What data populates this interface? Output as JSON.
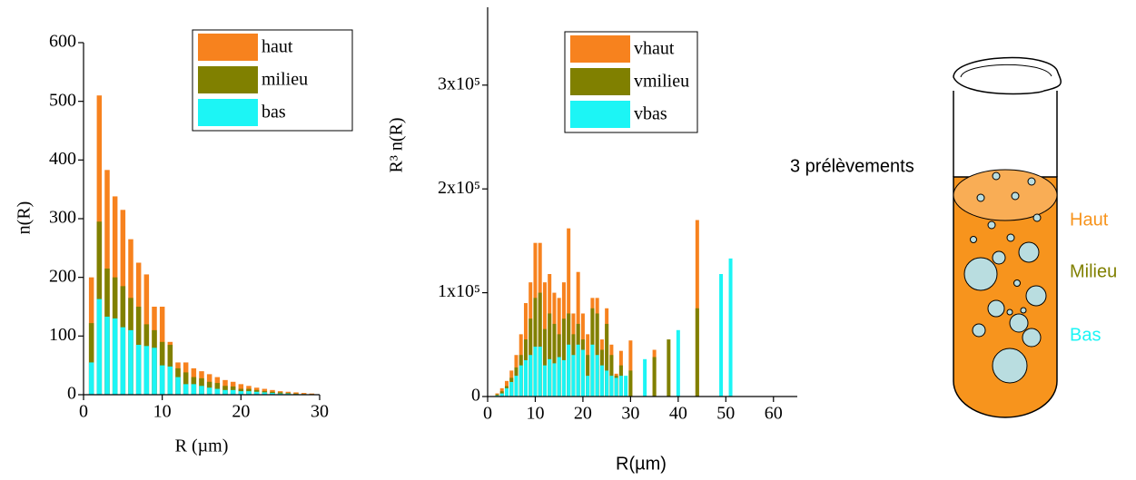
{
  "chart_data": [
    {
      "type": "bar",
      "xlabel": "R (µm)",
      "ylabel": "n(R)",
      "x": [
        1,
        2,
        3,
        4,
        5,
        6,
        7,
        8,
        9,
        10,
        11,
        12,
        13,
        14,
        15,
        16,
        17,
        18,
        19,
        20,
        21,
        22,
        23,
        24,
        25,
        26,
        27,
        28,
        29
      ],
      "series": [
        {
          "name": "haut",
          "color": "#f7821e",
          "values": [
            200,
            510,
            383,
            338,
            315,
            265,
            225,
            205,
            150,
            150,
            90,
            55,
            55,
            45,
            40,
            35,
            30,
            25,
            22,
            18,
            15,
            12,
            10,
            8,
            6,
            5,
            4,
            3,
            2
          ]
        },
        {
          "name": "milieu",
          "color": "#808000",
          "values": [
            122,
            295,
            215,
            200,
            185,
            165,
            150,
            120,
            110,
            90,
            85,
            45,
            38,
            30,
            28,
            22,
            20,
            15,
            14,
            10,
            10,
            8,
            6,
            5,
            4,
            3,
            2,
            1,
            1
          ]
        },
        {
          "name": "bas",
          "color": "#1cf5f5",
          "values": [
            55,
            163,
            133,
            130,
            115,
            110,
            85,
            83,
            80,
            50,
            48,
            30,
            18,
            18,
            15,
            12,
            10,
            8,
            8,
            6,
            6,
            5,
            4,
            3,
            2,
            2,
            1,
            1,
            0
          ]
        }
      ],
      "xlim": [
        0,
        30
      ],
      "xticks": [
        0,
        10,
        20,
        30
      ],
      "ylim": [
        0,
        600
      ],
      "yticks": [
        0,
        100,
        200,
        300,
        400,
        500,
        600
      ]
    },
    {
      "type": "bar",
      "xlabel": "R(µm)",
      "ylabel": "R³ n(R)",
      "x": [
        2,
        3,
        4,
        5,
        6,
        7,
        8,
        9,
        10,
        11,
        12,
        13,
        14,
        15,
        16,
        17,
        18,
        19,
        20,
        21,
        22,
        23,
        24,
        25,
        26,
        27,
        28,
        29,
        30,
        33,
        35,
        38,
        40,
        44,
        49,
        51
      ],
      "series": [
        {
          "name": "vhaut",
          "color": "#f7821e",
          "values": [
            3000,
            8000,
            15000,
            25000,
            40000,
            60000,
            90000,
            110000,
            148000,
            148000,
            110000,
            118000,
            100000,
            95000,
            110000,
            162000,
            80000,
            120000,
            80000,
            60000,
            95000,
            95000,
            55000,
            85000,
            50000,
            22000,
            44000,
            null,
            54000,
            null,
            45000,
            null,
            null,
            170000,
            null,
            null
          ]
        },
        {
          "name": "vmilieu",
          "color": "#808000",
          "values": [
            2000,
            5000,
            10000,
            18000,
            28000,
            40000,
            55000,
            75000,
            95000,
            100000,
            65000,
            80000,
            70000,
            60000,
            75000,
            80000,
            60000,
            70000,
            55000,
            40000,
            85000,
            80000,
            45000,
            70000,
            40000,
            20000,
            30000,
            null,
            25000,
            null,
            38000,
            55000,
            null,
            85000,
            null,
            null
          ]
        },
        {
          "name": "vbas",
          "color": "#1cf5f5",
          "values": [
            1000,
            3000,
            8000,
            14000,
            20000,
            30000,
            35000,
            40000,
            48000,
            48000,
            30000,
            36000,
            32000,
            38000,
            35000,
            50000,
            40000,
            50000,
            45000,
            20000,
            50000,
            40000,
            30000,
            25000,
            20000,
            18000,
            20000,
            20000,
            null,
            36000,
            null,
            null,
            64000,
            null,
            118000,
            133000
          ]
        }
      ],
      "xlim": [
        0,
        65
      ],
      "xticks": [
        0,
        10,
        20,
        30,
        40,
        50,
        60
      ],
      "ylim": [
        0,
        375000
      ],
      "yticks": [
        0,
        {
          "value": 100000,
          "label": "1x10⁵"
        },
        {
          "value": 200000,
          "label": "2x10⁵"
        },
        {
          "value": 300000,
          "label": "3x10⁵"
        }
      ]
    }
  ],
  "diagram": {
    "caption": "3 prélèvements",
    "labels": [
      "Haut",
      "Milieu",
      "Bas"
    ]
  }
}
